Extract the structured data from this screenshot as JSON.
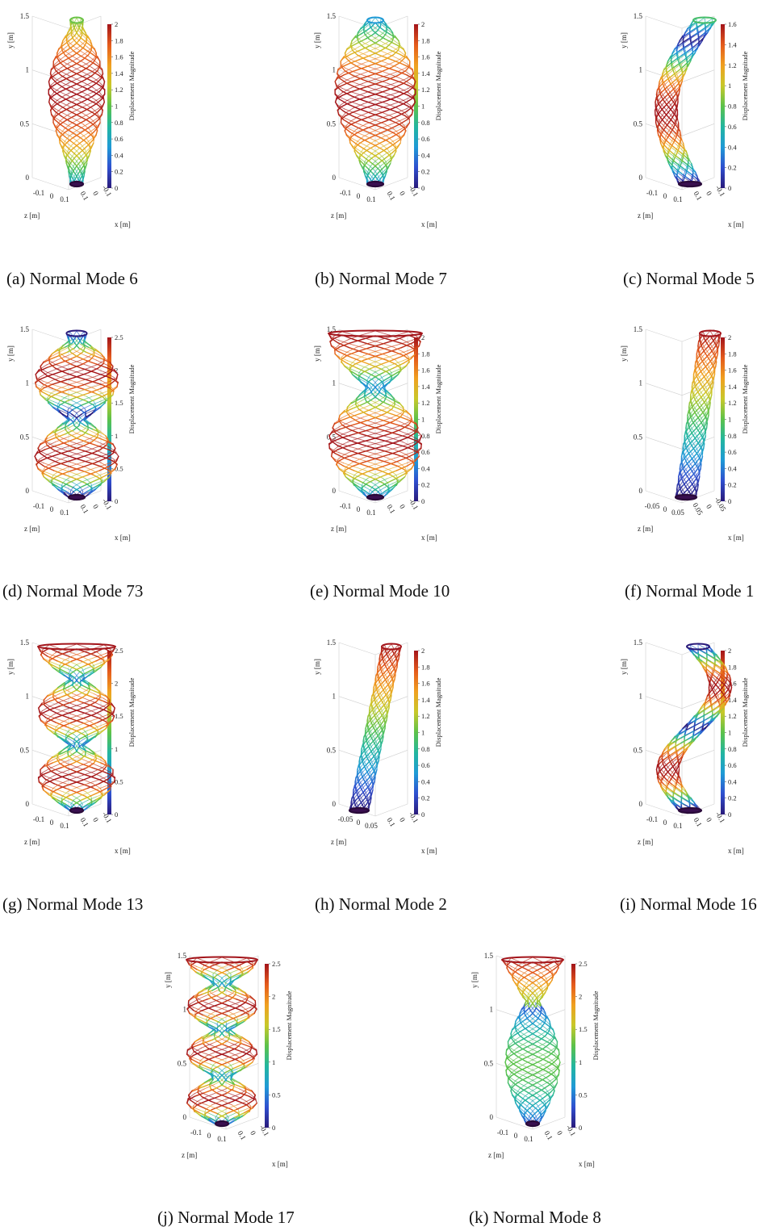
{
  "colorbar_title": "Displacement Magnitude",
  "axis_labels": {
    "y": "y [m]",
    "x": "x [m]",
    "z": "z [m]"
  },
  "colormap": [
    "#2a1a7a",
    "#2f4fcf",
    "#1f9ad6",
    "#22b6a0",
    "#5cc24a",
    "#c8c82a",
    "#f0a020",
    "#e45a1c",
    "#a3141a"
  ],
  "panels": [
    {
      "id": "a",
      "caption": "(a) Normal Mode 6",
      "shape": "bulge",
      "max_disp": 2,
      "y_ticks": [
        "1.5",
        "1",
        "0.5",
        "0"
      ],
      "cb_ticks": [
        "2",
        "1.8",
        "1.6",
        "1.4",
        "1.2",
        "1",
        "0.8",
        "0.6",
        "0.4",
        "0.2",
        "0"
      ],
      "z_ticks": [
        "-0.1",
        "0",
        "0.1"
      ],
      "x_ticks": [
        "0.1",
        "0",
        "-0.1"
      ]
    },
    {
      "id": "b",
      "caption": "(b) Normal Mode 7",
      "shape": "wide-bulge",
      "max_disp": 2,
      "y_ticks": [
        "1.5",
        "1",
        "0.5",
        "0"
      ],
      "cb_ticks": [
        "2",
        "1.8",
        "1.6",
        "1.4",
        "1.2",
        "1",
        "0.8",
        "0.6",
        "0.4",
        "0.2",
        "0"
      ],
      "z_ticks": [
        "-0.1",
        "0",
        "0.1"
      ],
      "x_ticks": [
        "0.1",
        "0",
        "-0.1"
      ]
    },
    {
      "id": "c",
      "caption": "(c) Normal Mode 5",
      "shape": "c-bend",
      "max_disp": 1.6,
      "y_ticks": [
        "1.5",
        "1",
        "0.5",
        "0"
      ],
      "cb_ticks": [
        "1.6",
        "1.4",
        "1.2",
        "1",
        "0.8",
        "0.6",
        "0.4",
        "0.2",
        "0"
      ],
      "z_ticks": [
        "-0.1",
        "0",
        "0.1"
      ],
      "x_ticks": [
        "0.1",
        "0",
        "-0.1"
      ]
    },
    {
      "id": "d",
      "caption": "(d) Normal Mode 73",
      "shape": "petals",
      "max_disp": 2.5,
      "y_ticks": [
        "1.5",
        "1",
        "0.5",
        "0"
      ],
      "cb_ticks": [
        "2.5",
        "2",
        "1.5",
        "1",
        "0.5",
        "0"
      ],
      "z_ticks": [
        "-0.1",
        "0",
        "0.1"
      ],
      "x_ticks": [
        "0.1",
        "0",
        "-0.1"
      ]
    },
    {
      "id": "e",
      "caption": "(e) Normal Mode 10",
      "shape": "two-bulge",
      "max_disp": 2,
      "y_ticks": [
        "1.5",
        "1",
        "0.5",
        "0"
      ],
      "cb_ticks": [
        "2",
        "1.8",
        "1.6",
        "1.4",
        "1.2",
        "1",
        "0.8",
        "0.6",
        "0.4",
        "0.2",
        "0"
      ],
      "z_ticks": [
        "-0.1",
        "0",
        "0.1"
      ],
      "x_ticks": [
        "0.1",
        "0",
        "-0.1"
      ]
    },
    {
      "id": "f",
      "caption": "(f) Normal Mode 1",
      "shape": "lean",
      "max_disp": 2,
      "y_ticks": [
        "1.5",
        "1",
        "0.5",
        "0"
      ],
      "cb_ticks": [
        "2",
        "1.8",
        "1.6",
        "1.4",
        "1.2",
        "1",
        "0.8",
        "0.6",
        "0.4",
        "0.2",
        "0"
      ],
      "z_ticks": [
        "-0.05",
        "0",
        "0.05"
      ],
      "x_ticks": [
        "0.05",
        "0",
        "-0.05"
      ]
    },
    {
      "id": "g",
      "caption": "(g) Normal Mode 13",
      "shape": "three-bulge",
      "max_disp": 2.5,
      "y_ticks": [
        "1.5",
        "1",
        "0.5",
        "0"
      ],
      "cb_ticks": [
        "2.5",
        "2",
        "1.5",
        "1",
        "0.5",
        "0"
      ],
      "z_ticks": [
        "-0.1",
        "0",
        "0.1"
      ],
      "x_ticks": [
        "0.1",
        "0",
        "-0.1"
      ]
    },
    {
      "id": "h",
      "caption": "(h) Normal Mode 2",
      "shape": "lean-right",
      "max_disp": 2,
      "y_ticks": [
        "1.5",
        "1",
        "0.5",
        "0"
      ],
      "cb_ticks": [
        "2",
        "1.8",
        "1.6",
        "1.4",
        "1.2",
        "1",
        "0.8",
        "0.6",
        "0.4",
        "0.2",
        "0"
      ],
      "z_ticks": [
        "-0.05",
        "0",
        "0.05"
      ],
      "x_ticks": [
        "0.1",
        "0",
        "-0.1"
      ]
    },
    {
      "id": "i",
      "caption": "(i) Normal Mode 16",
      "shape": "s-bend",
      "max_disp": 2,
      "y_ticks": [
        "1.5",
        "1",
        "0.5",
        "0"
      ],
      "cb_ticks": [
        "2",
        "1.8",
        "1.6",
        "1.4",
        "1.2",
        "1",
        "0.8",
        "0.6",
        "0.4",
        "0.2",
        "0"
      ],
      "z_ticks": [
        "-0.1",
        "0",
        "0.1"
      ],
      "x_ticks": [
        "0.1",
        "0",
        "-0.1"
      ]
    },
    {
      "id": "j",
      "caption": "(j) Normal Mode 17",
      "shape": "four-bulge",
      "max_disp": 2.5,
      "y_ticks": [
        "1.5",
        "1",
        "0.5",
        "0"
      ],
      "cb_ticks": [
        "2.5",
        "2",
        "1.5",
        "1",
        "0.5",
        "0"
      ],
      "z_ticks": [
        "-0.1",
        "0",
        "0.1"
      ],
      "x_ticks": [
        "0.1",
        "0",
        "-0.1"
      ]
    },
    {
      "id": "k",
      "caption": "(k) Normal Mode 8",
      "shape": "twist",
      "max_disp": 2.5,
      "y_ticks": [
        "1.5",
        "1",
        "0.5",
        "0"
      ],
      "cb_ticks": [
        "2.5",
        "2",
        "1.5",
        "1",
        "0.5",
        "0"
      ],
      "z_ticks": [
        "-0.1",
        "0",
        "0.1"
      ],
      "x_ticks": [
        "0.1",
        "0",
        "-0.1"
      ]
    }
  ]
}
